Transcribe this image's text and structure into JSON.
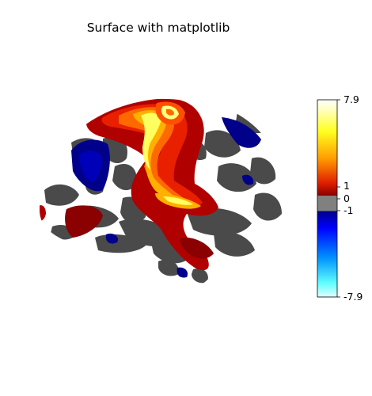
{
  "title": "Surface with matplotlib",
  "colorbar": {
    "ticks": [
      {
        "label": "7.9",
        "value": 7.9
      },
      {
        "label": "1",
        "value": 1
      },
      {
        "label": "0",
        "value": 0
      },
      {
        "label": "-1",
        "value": -1
      },
      {
        "label": "-7.9",
        "value": -7.9
      }
    ],
    "vmin": -7.9,
    "vmax": 7.9,
    "threshold": 1,
    "threshold_color": "#808080"
  },
  "colors": {
    "sulc_dark": "#4a4a4a",
    "sulc_light": "#ffffff",
    "pos_low": "#8b0000",
    "pos_mid": "#ff3a00",
    "pos_high": "#ffff60",
    "neg_low": "#00008b",
    "neg_mid": "#0080ff",
    "neg_high": "#80ffff"
  }
}
